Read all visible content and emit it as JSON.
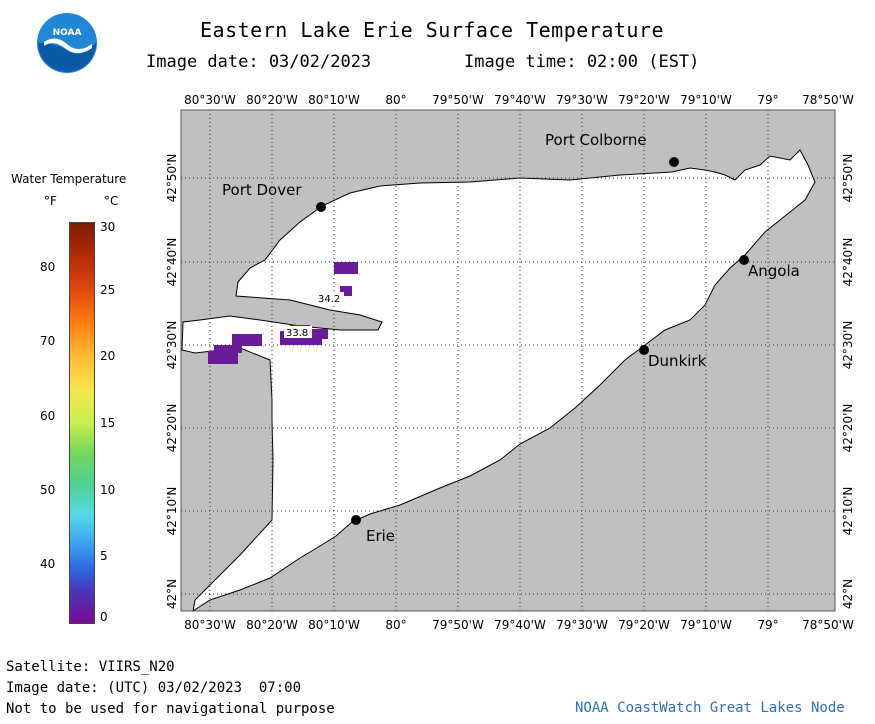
{
  "header": {
    "title": "Eastern Lake Erie Surface Temperature",
    "image_date_label": "Image date: 03/02/2023",
    "image_time_label": "Image time: 02:00 (EST)",
    "logo_text": "NOAA"
  },
  "map": {
    "lon_labels": [
      "80°30'W",
      "80°20'W",
      "80°10'W",
      "80°",
      "79°50'W",
      "79°40'W",
      "79°30'W",
      "79°20'W",
      "79°10'W",
      "79°",
      "78°50'W"
    ],
    "lat_labels": [
      "42°50'N",
      "42°40'N",
      "42°30'N",
      "42°20'N",
      "42°10'N",
      "42°N"
    ],
    "places": [
      "Port Colborne",
      "Port Dover",
      "Angola",
      "Dunkirk",
      "Erie"
    ],
    "readings": [
      "34.2",
      "33.8"
    ],
    "colors": {
      "land": "#c0c0c0",
      "water": "#ffffff",
      "cold_patch": "#6a1b9a"
    }
  },
  "legend": {
    "title": "Water Temperature",
    "unit_f": "°F",
    "unit_c": "°C",
    "f_ticks": [
      "80",
      "70",
      "60",
      "50",
      "40"
    ],
    "c_ticks": [
      "30",
      "25",
      "20",
      "15",
      "10",
      "5",
      "0"
    ]
  },
  "footer": {
    "satellite": "Satellite: VIIRS_N20",
    "utc_date": "Image date: (UTC) 03/02/2023  07:00",
    "disclaimer": "Not to be used for navigational purpose",
    "credit": "NOAA CoastWatch Great Lakes Node"
  }
}
